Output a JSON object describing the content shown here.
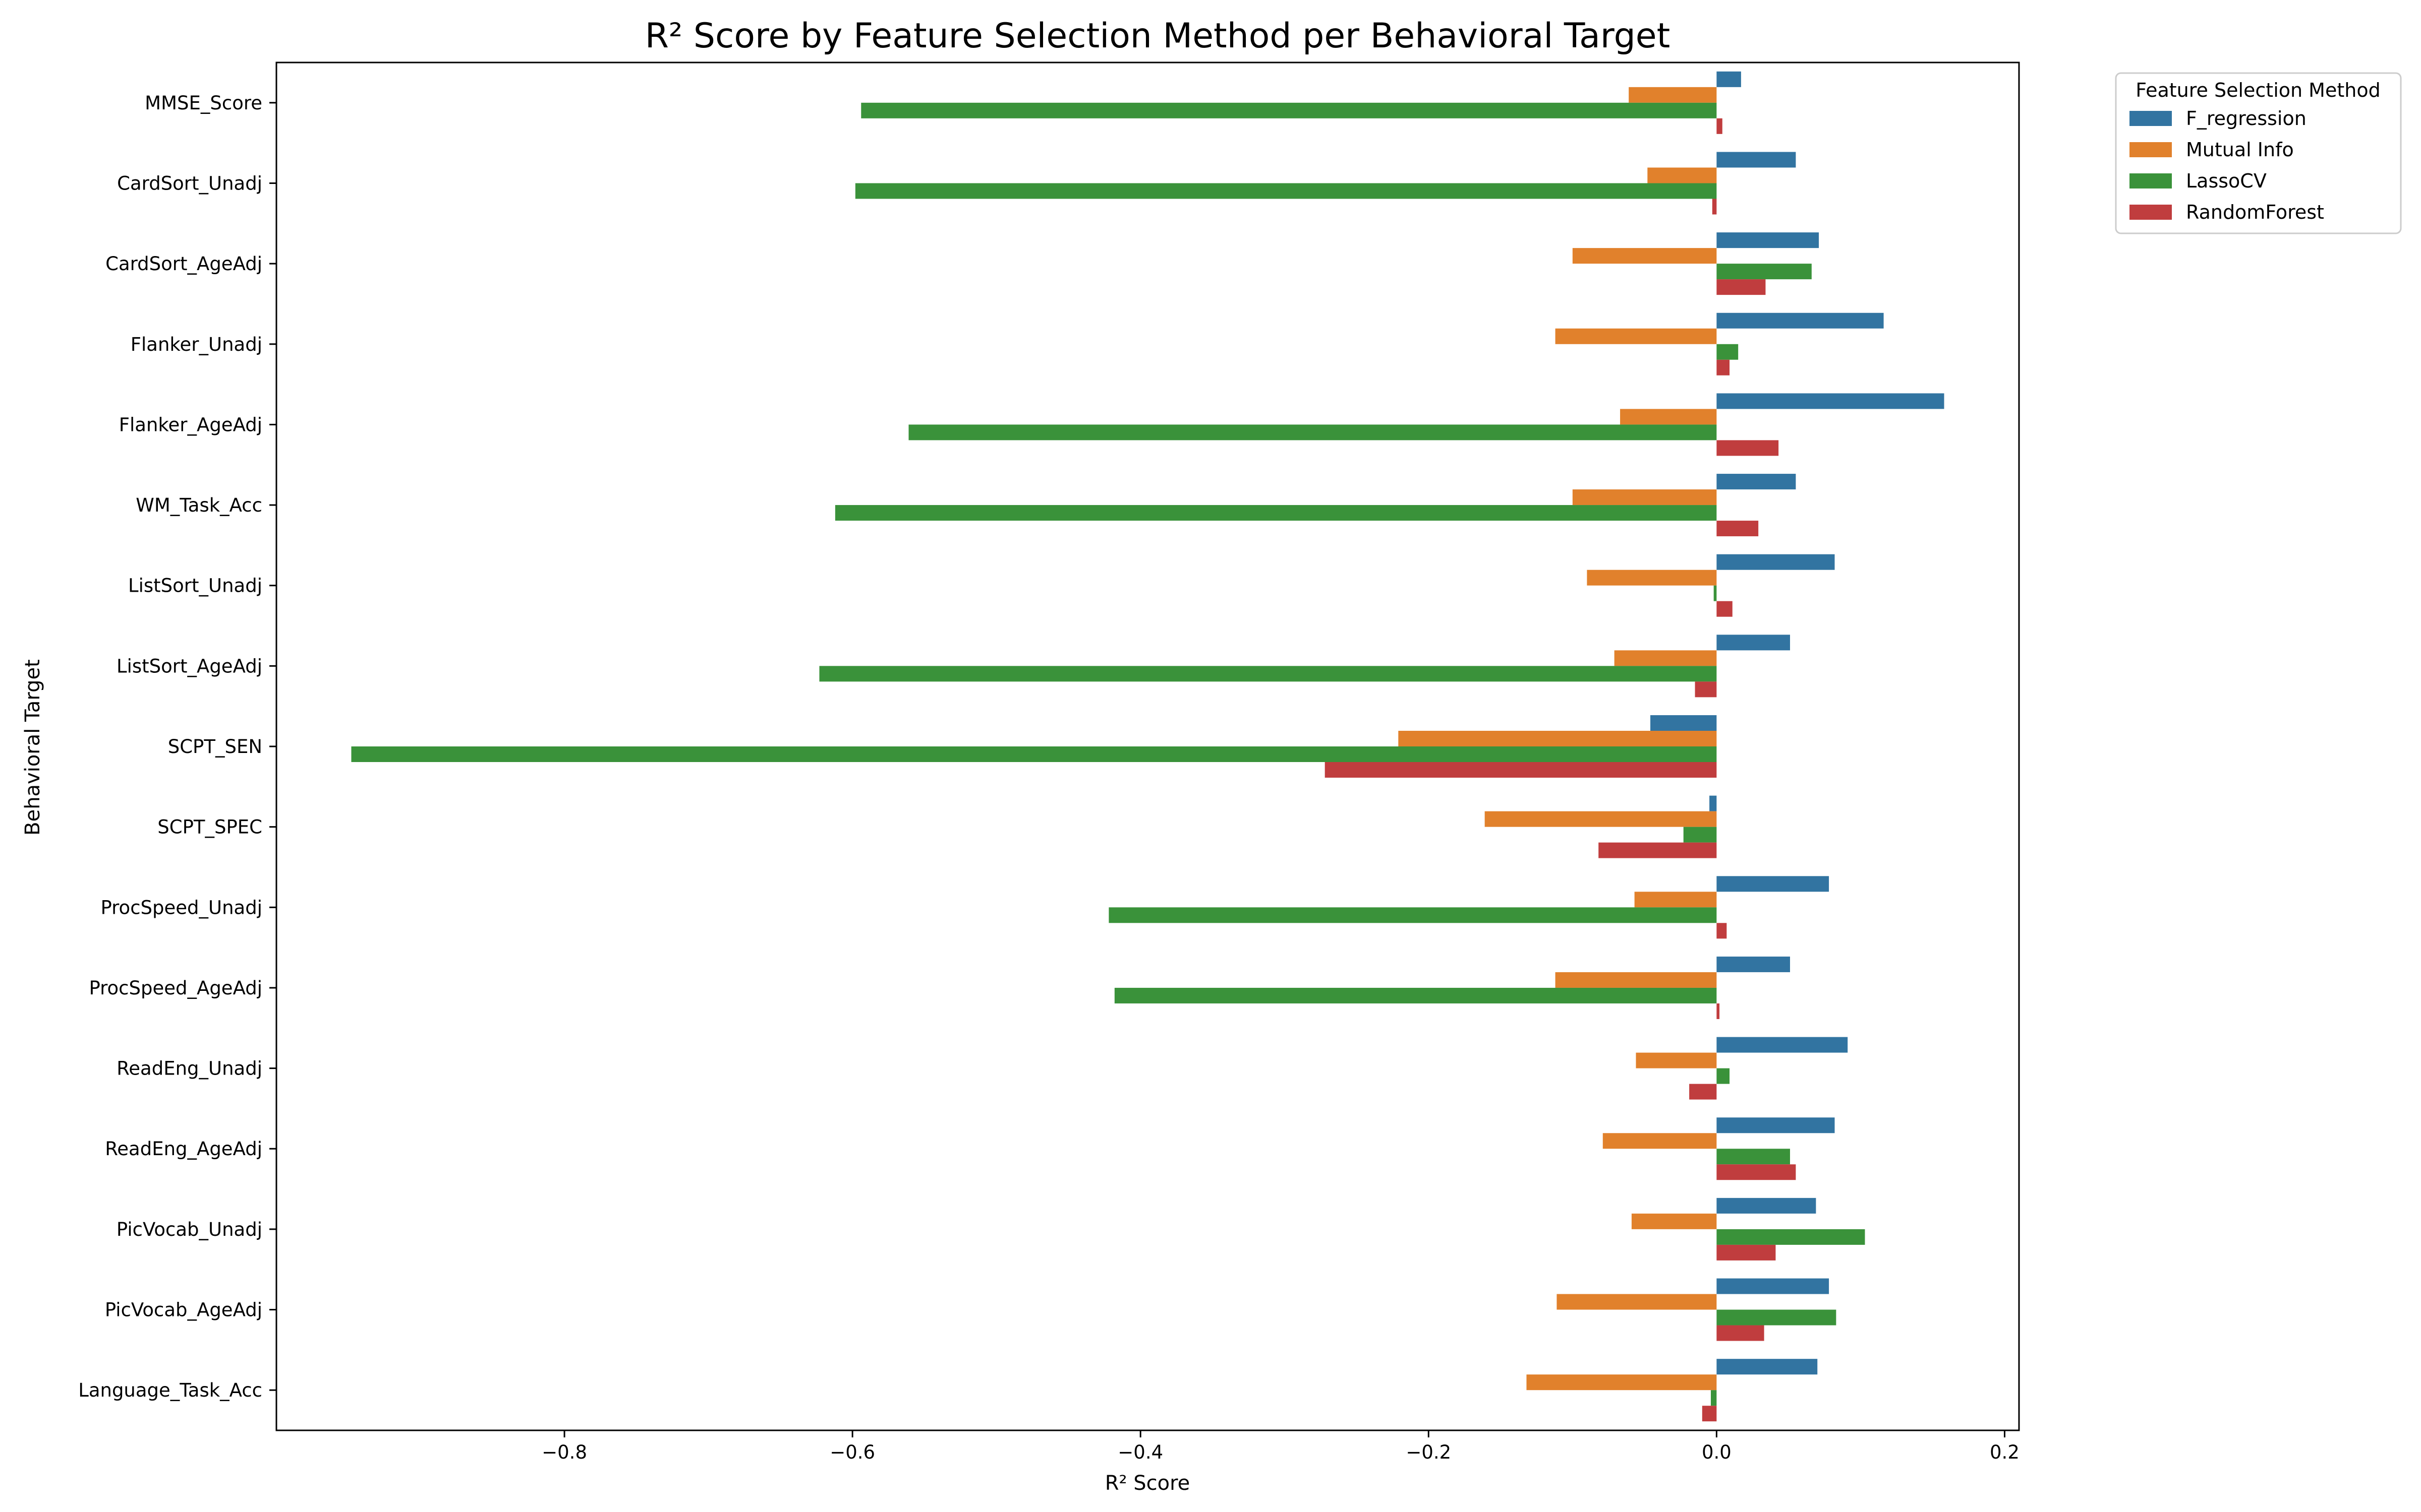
{
  "chart_data": {
    "type": "bar",
    "orientation": "horizontal",
    "title": "R² Score by Feature Selection Method per Behavioral Target",
    "xlabel": "R² Score",
    "ylabel": "Behavioral Target",
    "xlim": [
      -1.0,
      0.21
    ],
    "xticks": [
      {
        "value": -0.8,
        "label": "−0.8"
      },
      {
        "value": -0.6,
        "label": "−0.6"
      },
      {
        "value": -0.4,
        "label": "−0.4"
      },
      {
        "value": -0.2,
        "label": "−0.2"
      },
      {
        "value": 0.0,
        "label": "0.0"
      },
      {
        "value": 0.2,
        "label": "0.2"
      }
    ],
    "grid": false,
    "legend": {
      "title": "Feature Selection Method",
      "placement": "outside-top-right"
    },
    "categories": [
      "MMSE_Score",
      "CardSort_Unadj",
      "CardSort_AgeAdj",
      "Flanker_Unadj",
      "Flanker_AgeAdj",
      "WM_Task_Acc",
      "ListSort_Unadj",
      "ListSort_AgeAdj",
      "SCPT_SEN",
      "SCPT_SPEC",
      "ProcSpeed_Unadj",
      "ProcSpeed_AgeAdj",
      "ReadEng_Unadj",
      "ReadEng_AgeAdj",
      "PicVocab_Unadj",
      "PicVocab_AgeAdj",
      "Language_Task_Acc"
    ],
    "series": [
      {
        "name": "F_regression",
        "color": "#3274a1",
        "values": [
          0.017,
          0.055,
          0.071,
          0.116,
          0.158,
          0.055,
          0.082,
          0.051,
          -0.046,
          -0.005,
          0.078,
          0.051,
          0.091,
          0.082,
          0.069,
          0.078,
          0.07
        ]
      },
      {
        "name": "Mutual Info",
        "color": "#e1812c",
        "values": [
          -0.061,
          -0.048,
          -0.1,
          -0.112,
          -0.067,
          -0.1,
          -0.09,
          -0.071,
          -0.221,
          -0.161,
          -0.057,
          -0.112,
          -0.056,
          -0.079,
          -0.059,
          -0.111,
          -0.132
        ]
      },
      {
        "name": "LassoCV",
        "color": "#3a923a",
        "values": [
          -0.594,
          -0.598,
          0.066,
          0.015,
          -0.561,
          -0.612,
          -0.002,
          -0.623,
          -0.948,
          -0.023,
          -0.422,
          -0.418,
          0.009,
          0.051,
          0.103,
          0.083,
          -0.004
        ]
      },
      {
        "name": "RandomForest",
        "color": "#c03d3e",
        "values": [
          0.004,
          -0.003,
          0.034,
          0.009,
          0.043,
          0.029,
          0.011,
          -0.015,
          -0.272,
          -0.082,
          0.007,
          0.002,
          -0.019,
          0.055,
          0.041,
          0.033,
          -0.01
        ]
      }
    ]
  }
}
